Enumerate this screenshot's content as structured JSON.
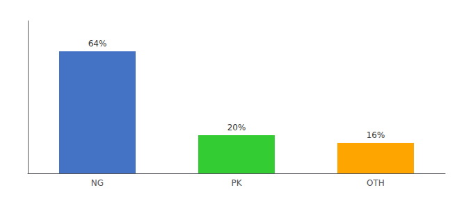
{
  "chart_data": {
    "type": "bar",
    "categories": [
      "NG",
      "PK",
      "OTH"
    ],
    "values": [
      64,
      20,
      16
    ],
    "value_labels": [
      "64%",
      "20%",
      "16%"
    ],
    "colors": [
      "#4472C4",
      "#33CC33",
      "#FFA500"
    ],
    "ylim": [
      0,
      80
    ],
    "grid": false,
    "data_labels": true,
    "tick_labels": "x"
  }
}
